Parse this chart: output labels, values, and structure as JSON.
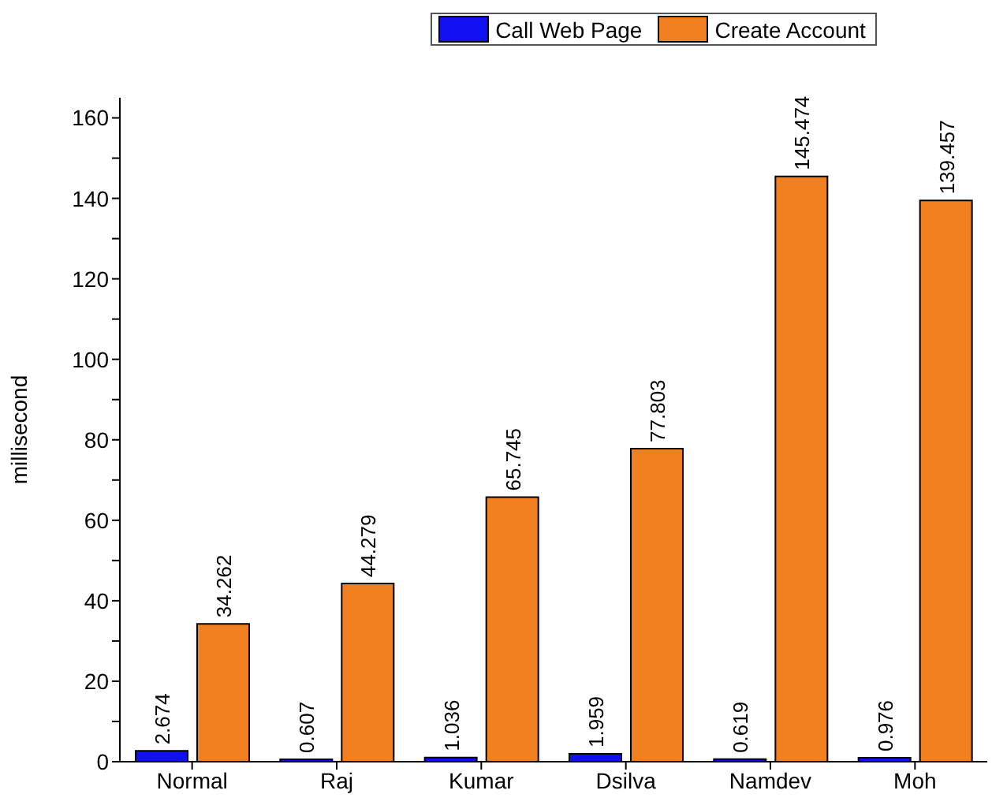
{
  "chart_data": {
    "type": "bar",
    "ylabel": "millisecond",
    "categories": [
      "Normal",
      "Raj",
      "Kumar",
      "Dsilva",
      "Namdev",
      "Moh"
    ],
    "series": [
      {
        "name": "Call Web Page",
        "color": "#1010f0",
        "values": [
          2.674,
          0.607,
          1.036,
          1.959,
          0.619,
          0.976
        ]
      },
      {
        "name": "Create Account",
        "color": "#f08020",
        "values": [
          34.262,
          44.279,
          65.745,
          77.803,
          145.474,
          139.457
        ]
      }
    ],
    "ylim": [
      0,
      165
    ],
    "yticks": [
      0,
      {
        "value": 10,
        "label": null
      },
      20,
      {
        "value": 30,
        "label": null
      },
      40,
      {
        "value": 50,
        "label": null
      },
      60,
      {
        "value": 70,
        "label": null
      },
      80,
      {
        "value": 90,
        "label": null
      },
      100,
      {
        "value": 110,
        "label": null
      },
      120,
      {
        "value": 130,
        "label": null
      },
      140,
      {
        "value": 150,
        "label": null
      },
      160
    ],
    "data_labels": true,
    "legend": "top",
    "grid": false
  }
}
